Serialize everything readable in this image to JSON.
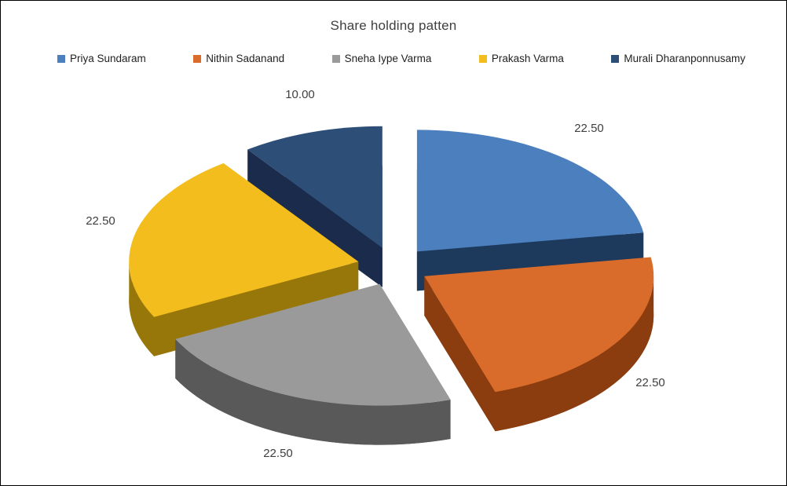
{
  "window": {
    "background": "#ffffff",
    "border_color": "#000000"
  },
  "chart_data": {
    "type": "pie",
    "style": "3d-exploded",
    "title": "Share holding patten",
    "legend_position": "top",
    "direction": "clockwise",
    "start_angle_deg": 0,
    "categories": [
      "Priya Sundaram",
      "Nithin Sadanand",
      "Sneha Iype Varma",
      "Prakash Varma",
      "Murali Dharanponnusamy"
    ],
    "values": [
      22.5,
      22.5,
      22.5,
      22.5,
      10
    ],
    "total": 100,
    "data_labels": [
      "22.50",
      "22.50",
      "22.50",
      "22.50",
      "10.00"
    ],
    "colors": [
      "#4c7fbe",
      "#d96c2b",
      "#9a9a9a",
      "#f2bd1d",
      "#2d4e77"
    ],
    "side_colors": [
      "#1d3a5c",
      "#8c3d10",
      "#595959",
      "#98770a",
      "#1b2b4b"
    ]
  }
}
